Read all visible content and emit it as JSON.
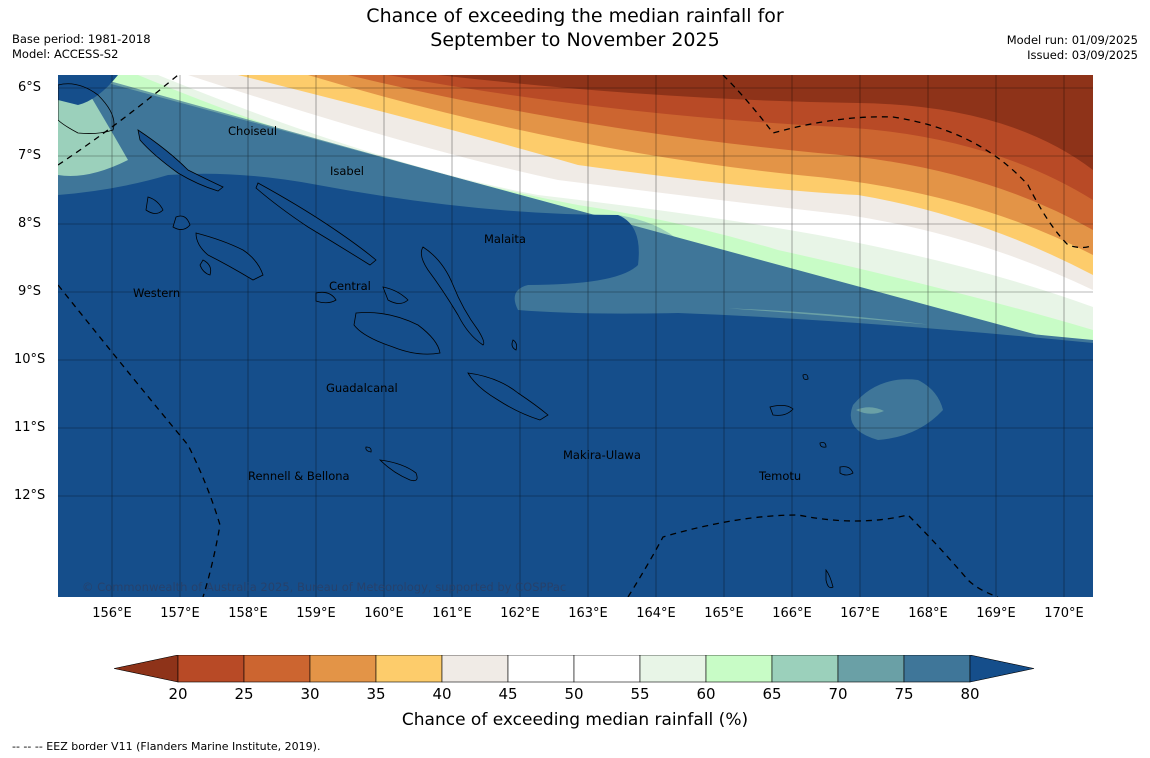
{
  "title": {
    "line1": "Chance of exceeding the median rainfall for",
    "line2": "September to November 2025"
  },
  "meta_left": {
    "base_period": "Base period: 1981-2018",
    "model": "Model: ACCESS-S2"
  },
  "meta_right": {
    "model_run": "Model run: 01/09/2025",
    "issued": "Issued: 03/09/2025"
  },
  "map": {
    "lat_labels": [
      "6°S",
      "7°S",
      "8°S",
      "9°S",
      "10°S",
      "11°S",
      "12°S"
    ],
    "lon_labels": [
      "156°E",
      "157°E",
      "158°E",
      "159°E",
      "160°E",
      "161°E",
      "162°E",
      "163°E",
      "164°E",
      "165°E",
      "166°E",
      "167°E",
      "168°E",
      "169°E",
      "170°E"
    ],
    "regions": [
      "Choiseul",
      "Isabel",
      "Malaita",
      "Western",
      "Central",
      "Guadalcanal",
      "Makira-Ulawa",
      "Rennell & Bellona",
      "Temotu"
    ],
    "copyright": "© Commonwealth of Australia 2025, Bureau of Meteorology, supported by COSPPac"
  },
  "colorbar": {
    "ticks": [
      "20",
      "25",
      "30",
      "35",
      "40",
      "45",
      "50",
      "55",
      "60",
      "65",
      "70",
      "75",
      "80"
    ],
    "colors": [
      "#8e3319",
      "#b84a26",
      "#cc6530",
      "#e39447",
      "#fdcc6b",
      "#f0ebe6",
      "#ffffff",
      "#ffffff",
      "#e8f5e7",
      "#c8fcc6",
      "#9bd0bb",
      "#6aa0a6",
      "#3f7699",
      "#154e8b"
    ],
    "label": "Chance of exceeding median rainfall (%)"
  },
  "eez_note": "--  --  -- EEZ border V11 (Flanders Marine Institute, 2019)."
}
